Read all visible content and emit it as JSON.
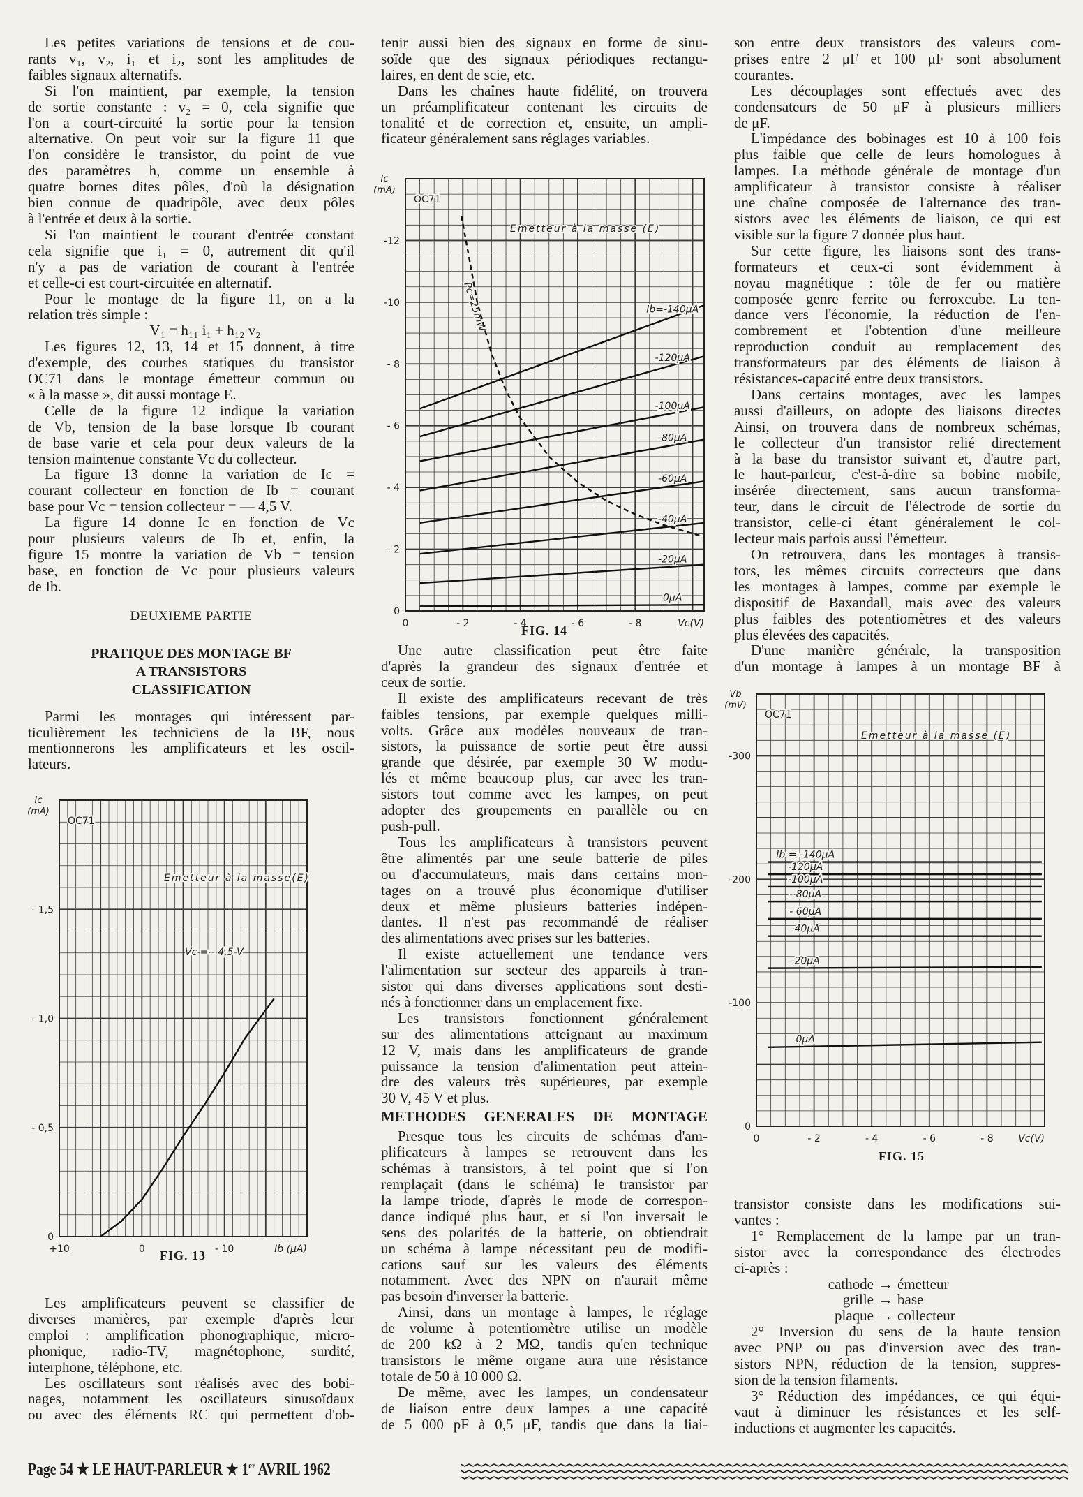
{
  "column1": {
    "section_a": [
      [
        "Les petites variations de tensions et de cou-",
        "rants v₁, v₂, i₁ et i₂, sont les amplitudes de",
        "faibles signaux alternatifs."
      ],
      [
        "Si l'on maintient, par exemple, la tension",
        "de sortie constante : v₂ = 0, cela signifie que",
        "l'on a court-circuité la sortie pour la tension",
        "alternative. On peut voir sur la figure 11 que",
        "l'on considère le transistor, du point de vue",
        "des paramètres h, comme un ensemble à",
        "quatre bornes dites pôles, d'où la désignation",
        "bien connue de quadripôle, avec deux pôles",
        "à l'entrée et deux à la sortie."
      ],
      [
        "Si l'on maintient le courant d'entrée constant",
        "cela signifie que i₁ = 0, autrement dit qu'il",
        "n'y a pas de variation de courant à l'entrée",
        "et celle-ci est court-circuitée en alternatif."
      ],
      [
        "Pour le montage de la figure 11, on a la",
        "relation très simple :"
      ]
    ],
    "formula": "V₁ = h₁₁ i₁ + h₁₂ v₂",
    "section_b": [
      [
        "Les figures 12, 13, 14 et 15 donnent, à titre",
        "d'exemple, des courbes statiques du transistor",
        "OC71 dans le montage émetteur commun ou",
        "« à la masse », dit aussi montage E."
      ],
      [
        "Celle de la figure 12 indique la variation",
        "de Vb, tension de la base lorsque Ib courant",
        "de base varie et cela pour deux valeurs de la",
        "tension maintenue constante Vc du collecteur."
      ],
      [
        "La figure 13 donne la variation de Ic =",
        "courant collecteur en fonction de Ib = courant",
        "base pour Vc = tension collecteur = — 4,5 V."
      ],
      [
        "La figure 14 donne Ic en fonction de Vc",
        "pour plusieurs valeurs de Ib et, enfin, la",
        "figure 15 montre la variation de Vb = tension",
        "base, en fonction de Vc pour plusieurs valeurs",
        "de Ib."
      ]
    ],
    "part_heading": "DEUXIEME PARTIE",
    "subheading": [
      "PRATIQUE DES MONTAGE BF",
      "A TRANSISTORS",
      "CLASSIFICATION"
    ],
    "section_c": [
      [
        "Parmi les montages qui intéressent par-",
        "ticulièrement les techniciens de la BF, nous",
        "mentionnerons les amplificateurs et les oscil-",
        "lateurs."
      ]
    ],
    "section_d": [
      [
        "Les amplificateurs peuvent se classifier de",
        "diverses manières, par exemple d'après leur",
        "emploi : amplification phonographique, micro-",
        "phonique, radio-TV, magnétophone, surdité,",
        "interphone, téléphone, etc."
      ],
      [
        "Les oscillateurs sont réalisés avec des bobi-",
        "nages, notamment les oscillateurs sinusoïdaux",
        "ou avec des éléments RC qui permettent d'ob-"
      ]
    ]
  },
  "column2": {
    "section_a": [
      [
        "tenir aussi bien des signaux en forme de sinu-",
        "soïde que des signaux périodiques rectangu-",
        "laires, en dent de scie, etc."
      ],
      [
        "Dans les chaînes haute fidélité, on trouvera",
        "un préamplificateur contenant les circuits de",
        "tonalité et de correction et, ensuite, un ampli-",
        "ficateur généralement sans réglages variables."
      ]
    ],
    "section_b": [
      [
        "Une autre classification peut être faite",
        "d'après la grandeur des signaux d'entrée et",
        "ceux de sortie."
      ],
      [
        "Il existe des amplificateurs recevant de très",
        "faibles tensions, par exemple quelques milli-",
        "volts. Grâce aux modèles nouveaux de tran-",
        "sistors, la puissance de sortie peut être aussi",
        "grande que désirée, par exemple 30 W modu-",
        "lés et même beaucoup plus, car avec les tran-",
        "sistors tout comme avec les lampes, on peut",
        "adopter des groupements en parallèle ou en",
        "push-pull."
      ],
      [
        "Tous les amplificateurs à transistors peuvent",
        "être alimentés par une seule batterie de piles",
        "ou d'accumulateurs, mais dans certains mon-",
        "tages on a trouvé plus économique d'utiliser",
        "deux et même plusieurs batteries indépen-",
        "dantes. Il n'est pas recommandé de réaliser",
        "des alimentations avec prises sur les batteries."
      ],
      [
        "Il existe actuellement une tendance vers",
        "l'alimentation sur secteur des appareils à tran-",
        "sistor qui dans diverses applications sont desti-",
        "nés à fonctionner dans un emplacement fixe."
      ],
      [
        "Les transistors fonctionnent généralement",
        "sur des alimentations atteignant au maximum",
        "12 V, mais dans les amplificateurs de grande",
        "puissance la tension d'alimentation peut attein-",
        "dre des valeurs très supérieures, par exemple",
        "30 V, 45 V et plus."
      ]
    ],
    "heading": "METHODES GENERALES DE MONTAGE",
    "section_c": [
      [
        "Presque tous les circuits de schémas d'am-",
        "plificateurs à lampes se retrouvent dans les",
        "schémas à transistors, à tel point que si l'on",
        "remplaçait (dans le schéma) le transistor par",
        "la lampe triode, d'après le mode de correspon-",
        "dance indiqué plus haut, et si l'on inversait le",
        "sens des polarités de la batterie, on obtiendrait",
        "un schéma à lampe nécessitant peu de modifi-",
        "cations sauf sur les valeurs des éléments",
        "notamment. Avec des NPN on n'aurait même",
        "pas besoin d'inverser la batterie."
      ],
      [
        "Ainsi, dans un montage à lampes, le réglage",
        "de volume à potentiomètre utilise un modèle",
        "de 200 kΩ à 2 MΩ, tandis qu'en technique",
        "transistors le même organe aura une résistance",
        "totale de 50 à 10 000 Ω."
      ],
      [
        "De même, avec les lampes, un condensateur",
        "de liaison entre deux lampes a une capacité",
        "de 5 000 pF à 0,5 μF, tandis que dans la liai-"
      ]
    ]
  },
  "column3": {
    "section_a": [
      [
        "son entre deux transistors des valeurs com-",
        "prises entre 2 μF et 100 μF sont absolument",
        "courantes."
      ],
      [
        "Les découplages sont effectués avec des",
        "condensateurs de 50 μF à plusieurs milliers",
        "de μF."
      ],
      [
        "L'impédance des bobinages est 10 à 100 fois",
        "plus faible que celle de leurs homologues à",
        "lampes. La méthode générale de montage d'un",
        "amplificateur à transistor consiste à réaliser",
        "une chaîne composée de l'alternance des tran-",
        "sistors avec les éléments de liaison, ce qui est",
        "visible sur la figure 7 donnée plus haut."
      ],
      [
        "Sur cette figure, les liaisons sont des trans-",
        "formateurs et ceux-ci sont évidemment à",
        "noyau magnétique : tôle de fer ou matière",
        "composée genre ferrite ou ferroxcube. La ten-",
        "dance vers l'économie, la réduction de l'en-",
        "combrement et l'obtention d'une meilleure",
        "reproduction conduit au remplacement des",
        "transformateurs par des éléments de liaison à",
        "résistances-capacité entre deux transistors."
      ],
      [
        "Dans certains montages, avec les lampes",
        "aussi d'ailleurs, on adopte des liaisons directes",
        "Ainsi, on trouvera dans de nombreux schémas,",
        "le collecteur d'un transistor relié directement",
        "à la base du transistor suivant et, d'autre part,",
        "le haut-parleur, c'est-à-dire sa bobine mobile,",
        "insérée directement, sans aucun transforma-",
        "teur, dans le circuit de l'électrode de sortie du",
        "transistor, celle-ci étant généralement le col-",
        "lecteur mais parfois aussi l'émetteur."
      ],
      [
        "On retrouvera, dans les montages à transis-",
        "tors, les mêmes circuits correcteurs que dans",
        "les montages à lampes, comme par exemple le",
        "dispositif de Baxandall, mais avec des valeurs",
        "plus faibles des potentiomètres et des valeurs",
        "plus élevées des capacités."
      ],
      [
        "D'une manière générale, la transposition",
        "d'un montage à lampes à un montage BF à"
      ]
    ],
    "section_b": [
      [
        "transistor consiste dans les modifications sui-",
        "vantes :"
      ],
      [
        "1° Remplacement de la lampe par un tran-",
        "sistor avec la correspondance des électrodes",
        "ci-après :"
      ]
    ],
    "correspondence": [
      {
        "tube": "cathode",
        "arrow": "→",
        "transistor": "émetteur"
      },
      {
        "tube": "grille",
        "arrow": "→",
        "transistor": "base"
      },
      {
        "tube": "plaque",
        "arrow": "→",
        "transistor": "collecteur"
      }
    ],
    "section_c": [
      [
        "2° Inversion du sens de la haute tension",
        "avec PNP ou pas d'inversion avec des tran-",
        "sistors NPN, réduction de la tension, suppres-",
        "sion de la tension filaments."
      ],
      [
        "3° Réduction des impédances, ce qui équi-",
        "vaut à diminuer les résistances et les self-",
        "inductions et augmenter les capacités."
      ]
    ]
  },
  "footer": {
    "page": "Page 54",
    "star": "★",
    "publication": "LE HAUT-PARLEUR",
    "day": "1",
    "day_suffix": "er",
    "date": "AVRIL 1962"
  },
  "colors": {
    "paper": "#f3f1ec",
    "ink": "#1d1d1d",
    "grid": "#3a3a3a"
  },
  "chart_data": [
    {
      "type": "line",
      "caption": "FIG. 13",
      "ylabel": [
        "Ic",
        "(mA)"
      ],
      "xlabel": "Ib (μA)",
      "xlim": [
        10,
        -20
      ],
      "ylim": [
        0,
        -2.0
      ],
      "grid": true,
      "xticks": [
        {
          "value": 10,
          "label": "+10"
        },
        {
          "value": 0,
          "label": "0"
        },
        {
          "value": -10,
          "label": "- 10"
        }
      ],
      "yticks": [
        {
          "value": 0,
          "label": "0"
        },
        {
          "value": -0.5,
          "label": "- 0,5"
        },
        {
          "value": -1.0,
          "label": "- 1,0"
        },
        {
          "value": -1.5,
          "label": "- 1,5"
        }
      ],
      "annotations": [
        "OC71",
        "Emetteur à la masse(E)",
        "Vc = - 4,5 V"
      ],
      "series": [
        {
          "style": "solid",
          "points": [
            [
              5,
              0
            ],
            [
              2.5,
              -0.07
            ],
            [
              0,
              -0.17
            ],
            [
              -2.5,
              -0.31
            ],
            [
              -5,
              -0.46
            ],
            [
              -7.5,
              -0.6
            ],
            [
              -10,
              -0.75
            ],
            [
              -12.5,
              -0.91
            ],
            [
              -16,
              -1.09
            ]
          ]
        }
      ]
    },
    {
      "type": "line",
      "caption": "FIG. 14",
      "ylabel": [
        "Ic",
        "(mA)"
      ],
      "xlabel": "Vc(V)",
      "xlim": [
        0,
        -10.4
      ],
      "ylim": [
        0,
        -14
      ],
      "grid": true,
      "xticks": [
        {
          "value": 0,
          "label": "0"
        },
        {
          "value": -2,
          "label": "- 2"
        },
        {
          "value": -4,
          "label": "- 4"
        },
        {
          "value": -6,
          "label": "- 6"
        },
        {
          "value": -8,
          "label": "- 8"
        }
      ],
      "yticks": [
        {
          "value": 0,
          "label": "0"
        },
        {
          "value": -2,
          "label": "- 2"
        },
        {
          "value": -4,
          "label": "- 4"
        },
        {
          "value": -6,
          "label": "- 6"
        },
        {
          "value": -8,
          "label": "- 8"
        },
        {
          "value": -10,
          "label": "-10"
        },
        {
          "value": -12,
          "label": "-12"
        }
      ],
      "annotations": [
        "OC71",
        "Emetteur à la masse (E)",
        "Pc=25mW"
      ],
      "series": [
        {
          "name": "Ib=-140μA",
          "style": "solid",
          "points": [
            [
              -0.5,
              -6.55
            ],
            [
              -10.4,
              -9.9
            ]
          ]
        },
        {
          "name": "-120μA",
          "style": "solid",
          "points": [
            [
              -0.5,
              -5.65
            ],
            [
              -10.4,
              -8.25
            ]
          ]
        },
        {
          "name": "-100μA",
          "style": "solid",
          "points": [
            [
              -0.5,
              -4.85
            ],
            [
              -10.4,
              -6.6
            ]
          ]
        },
        {
          "name": "-80μA",
          "style": "solid",
          "points": [
            [
              -0.5,
              -3.9
            ],
            [
              -10.4,
              -5.55
            ]
          ]
        },
        {
          "name": "-60μA",
          "style": "solid",
          "points": [
            [
              -0.5,
              -2.85
            ],
            [
              -10.4,
              -4.2
            ]
          ]
        },
        {
          "name": "-40μA",
          "style": "solid",
          "points": [
            [
              -0.5,
              -1.85
            ],
            [
              -10.4,
              -2.85
            ]
          ]
        },
        {
          "name": "-20μA",
          "style": "solid",
          "points": [
            [
              -0.5,
              -0.9
            ],
            [
              -10.4,
              -1.5
            ]
          ]
        },
        {
          "name": "0μA",
          "style": "solid",
          "points": [
            [
              -0.5,
              -0.15
            ],
            [
              -10.4,
              -0.2
            ]
          ]
        },
        {
          "style": "dashed",
          "points": [
            [
              -1.95,
              -12.8
            ],
            [
              -2.5,
              -10
            ],
            [
              -3,
              -8.33
            ],
            [
              -3.5,
              -7.14
            ],
            [
              -4,
              -6.25
            ],
            [
              -5,
              -5
            ],
            [
              -6,
              -4.17
            ],
            [
              -7,
              -3.57
            ],
            [
              -8,
              -3.13
            ],
            [
              -9,
              -2.78
            ],
            [
              -10.4,
              -2.4
            ]
          ]
        }
      ]
    },
    {
      "type": "line",
      "caption": "FIG. 15",
      "ylabel": [
        "Vb",
        "(mV)"
      ],
      "xlabel": "Vc(V)",
      "xlim": [
        0,
        -10
      ],
      "ylim": [
        0,
        -350
      ],
      "grid": true,
      "xticks": [
        {
          "value": 0,
          "label": "0"
        },
        {
          "value": -2,
          "label": "- 2"
        },
        {
          "value": -4,
          "label": "- 4"
        },
        {
          "value": -6,
          "label": "- 6"
        },
        {
          "value": -8,
          "label": "- 8"
        }
      ],
      "yticks": [
        {
          "value": 0,
          "label": "0"
        },
        {
          "value": -100,
          "label": "-100"
        },
        {
          "value": -200,
          "label": "-200"
        },
        {
          "value": -300,
          "label": "-300"
        }
      ],
      "annotations": [
        "OC71",
        "Emetteur à la masse (E)"
      ],
      "series": [
        {
          "name": "Ib = -140μA",
          "style": "solid",
          "points": [
            [
              -0.4,
              -214
            ],
            [
              -9.9,
              -214
            ]
          ]
        },
        {
          "name": "-120μA",
          "style": "solid",
          "points": [
            [
              -0.4,
              -204
            ],
            [
              -9.9,
              -204
            ]
          ]
        },
        {
          "name": "-100μA",
          "style": "solid",
          "points": [
            [
              -0.4,
              -194
            ],
            [
              -9.9,
              -194
            ]
          ]
        },
        {
          "name": "- 80μA",
          "style": "solid",
          "points": [
            [
              -0.4,
              -182
            ],
            [
              -9.9,
              -182
            ]
          ]
        },
        {
          "name": "- 60μA",
          "style": "solid",
          "points": [
            [
              -0.4,
              -168
            ],
            [
              -9.9,
              -168
            ]
          ]
        },
        {
          "name": "-40μA",
          "style": "solid",
          "points": [
            [
              -0.4,
              -154
            ],
            [
              -9.9,
              -154
            ]
          ]
        },
        {
          "name": "-20μA",
          "style": "solid",
          "points": [
            [
              -0.4,
              -128
            ],
            [
              -9.9,
              -129
            ]
          ]
        },
        {
          "name": "0μA",
          "style": "solid",
          "points": [
            [
              -0.4,
              -64
            ],
            [
              -9.9,
              -68
            ]
          ]
        }
      ]
    }
  ]
}
